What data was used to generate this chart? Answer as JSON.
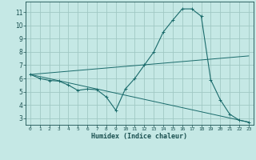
{
  "xlabel": "Humidex (Indice chaleur)",
  "background_color": "#c5e8e5",
  "grid_color": "#a0c8c4",
  "line_color": "#1a6b6b",
  "xlim": [
    -0.5,
    23.5
  ],
  "ylim": [
    2.5,
    11.8
  ],
  "yticks": [
    3,
    4,
    5,
    6,
    7,
    8,
    9,
    10,
    11
  ],
  "xticks": [
    0,
    1,
    2,
    3,
    4,
    5,
    6,
    7,
    8,
    9,
    10,
    11,
    12,
    13,
    14,
    15,
    16,
    17,
    18,
    19,
    20,
    21,
    22,
    23
  ],
  "series": [
    [
      0,
      6.3
    ],
    [
      1,
      6.0
    ],
    [
      2,
      5.85
    ],
    [
      3,
      5.8
    ],
    [
      4,
      5.5
    ],
    [
      5,
      5.1
    ],
    [
      6,
      5.2
    ],
    [
      7,
      5.15
    ],
    [
      8,
      4.6
    ],
    [
      9,
      3.6
    ],
    [
      10,
      5.2
    ],
    [
      11,
      6.0
    ],
    [
      12,
      7.0
    ],
    [
      13,
      8.0
    ],
    [
      14,
      9.5
    ],
    [
      15,
      10.4
    ],
    [
      16,
      11.25
    ],
    [
      17,
      11.25
    ],
    [
      18,
      10.7
    ],
    [
      19,
      5.9
    ],
    [
      20,
      4.4
    ],
    [
      21,
      3.3
    ],
    [
      22,
      2.85
    ],
    [
      23,
      2.7
    ]
  ],
  "line2": [
    [
      0,
      6.3
    ],
    [
      23,
      7.7
    ]
  ],
  "line3": [
    [
      0,
      6.3
    ],
    [
      23,
      2.7
    ]
  ]
}
